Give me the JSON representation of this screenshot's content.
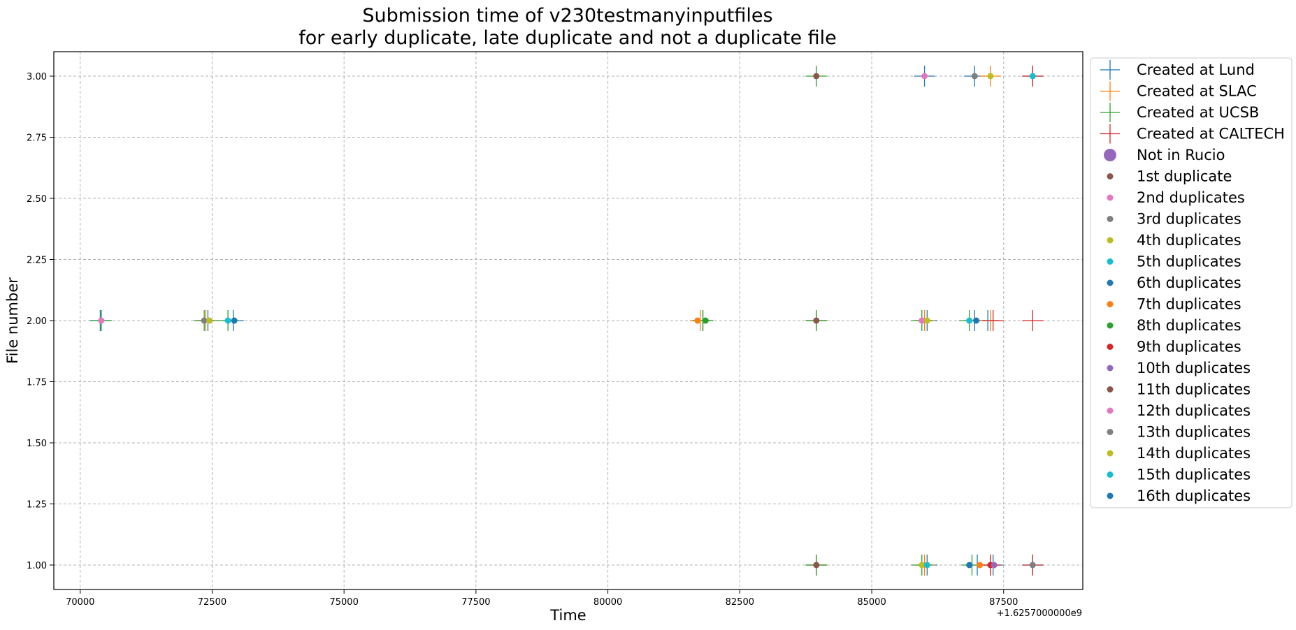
{
  "chart_data": {
    "type": "scatter",
    "title_lines": [
      "Submission time of v230testmanyinputfiles",
      "for early duplicate, late duplicate and not a duplicate file"
    ],
    "xlabel": "Time",
    "ylabel": "File number",
    "x_offset_label": "+1.6257000000e9",
    "xlim": [
      69500,
      89000
    ],
    "ylim": [
      0.9,
      3.1
    ],
    "x_ticks": [
      70000,
      72500,
      75000,
      77500,
      80000,
      82500,
      85000,
      87500
    ],
    "x_tick_labels": [
      "70000",
      "72500",
      "75000",
      "77500",
      "80000",
      "82500",
      "85000",
      "87500"
    ],
    "y_ticks": [
      1.0,
      1.25,
      1.5,
      1.75,
      2.0,
      2.25,
      2.5,
      2.75,
      3.0
    ],
    "y_tick_labels": [
      "1.00",
      "1.25",
      "1.50",
      "1.75",
      "2.00",
      "2.25",
      "2.50",
      "2.75",
      "3.00"
    ],
    "grid": true,
    "legend_position": "outside-right-top",
    "series": [
      {
        "name": "Created at Lund",
        "marker": "plus",
        "color": "#1f77b4",
        "points": [
          [
            70380,
            2.0
          ],
          [
            72420,
            2.0
          ],
          [
            72900,
            2.0
          ],
          [
            81800,
            2.0
          ],
          [
            83950,
            2.0
          ],
          [
            86050,
            2.0
          ],
          [
            86950,
            2.0
          ],
          [
            87200,
            2.0
          ],
          [
            83950,
            1.0
          ],
          [
            86050,
            1.0
          ],
          [
            87000,
            1.0
          ],
          [
            87300,
            1.0
          ],
          [
            88050,
            1.0
          ],
          [
            86000,
            3.0
          ],
          [
            86950,
            3.0
          ],
          [
            88050,
            3.0
          ]
        ]
      },
      {
        "name": "Created at SLAC",
        "marker": "plus",
        "color": "#ff7f0e",
        "points": [
          [
            72380,
            2.0
          ],
          [
            81750,
            2.0
          ],
          [
            83950,
            2.0
          ],
          [
            86000,
            2.0
          ],
          [
            87250,
            2.0
          ],
          [
            83950,
            1.0
          ],
          [
            86000,
            1.0
          ],
          [
            87250,
            1.0
          ],
          [
            87250,
            3.0
          ]
        ]
      },
      {
        "name": "Created at UCSB",
        "marker": "plus",
        "color": "#2ca02c",
        "points": [
          [
            70400,
            2.0
          ],
          [
            72350,
            2.0
          ],
          [
            72800,
            2.0
          ],
          [
            81800,
            2.0
          ],
          [
            83950,
            2.0
          ],
          [
            85950,
            2.0
          ],
          [
            86850,
            2.0
          ],
          [
            83950,
            1.0
          ],
          [
            85950,
            1.0
          ],
          [
            86900,
            1.0
          ],
          [
            83950,
            3.0
          ]
        ]
      },
      {
        "name": "Created at CALTECH",
        "marker": "plus",
        "color": "#d62728",
        "points": [
          [
            87300,
            2.0
          ],
          [
            88050,
            2.0
          ],
          [
            87250,
            1.0
          ],
          [
            88050,
            1.0
          ],
          [
            88050,
            3.0
          ]
        ]
      },
      {
        "name": "Not in Rucio",
        "marker": "bigdot",
        "color": "#9467bd",
        "points": []
      },
      {
        "name": "1st duplicate",
        "marker": "dot",
        "color": "#8c564b",
        "points": [
          [
            83950,
            3.0
          ],
          [
            83950,
            2.0
          ],
          [
            83950,
            1.0
          ]
        ]
      },
      {
        "name": "2nd duplicates",
        "marker": "dot",
        "color": "#e377c2",
        "points": [
          [
            70400,
            2.0
          ],
          [
            86000,
            3.0
          ],
          [
            85950,
            2.0
          ]
        ]
      },
      {
        "name": "3rd duplicates",
        "marker": "dot",
        "color": "#7f7f7f",
        "points": [
          [
            72350,
            2.0
          ],
          [
            86950,
            3.0
          ]
        ]
      },
      {
        "name": "4th duplicates",
        "marker": "dot",
        "color": "#bcbd22",
        "points": [
          [
            72450,
            2.0
          ],
          [
            87250,
            3.0
          ],
          [
            86050,
            2.0
          ],
          [
            85950,
            1.0
          ]
        ]
      },
      {
        "name": "5th duplicates",
        "marker": "dot",
        "color": "#17becf",
        "points": [
          [
            72800,
            2.0
          ],
          [
            88050,
            3.0
          ],
          [
            86850,
            2.0
          ],
          [
            86050,
            1.0
          ]
        ]
      },
      {
        "name": "6th duplicates",
        "marker": "dot",
        "color": "#1f77b4",
        "points": [
          [
            72920,
            2.0
          ],
          [
            86980,
            2.0
          ],
          [
            86850,
            1.0
          ]
        ]
      },
      {
        "name": "7th duplicates",
        "marker": "dot",
        "color": "#ff7f0e",
        "points": [
          [
            81700,
            2.0
          ],
          [
            87050,
            1.0
          ]
        ]
      },
      {
        "name": "8th duplicates",
        "marker": "dot",
        "color": "#2ca02c",
        "points": [
          [
            81850,
            2.0
          ]
        ]
      },
      {
        "name": "9th duplicates",
        "marker": "dot",
        "color": "#d62728",
        "points": [
          [
            87250,
            1.0
          ]
        ]
      },
      {
        "name": "10th duplicates",
        "marker": "dot",
        "color": "#9467bd",
        "points": [
          [
            87320,
            1.0
          ]
        ]
      },
      {
        "name": "11th duplicates",
        "marker": "dot",
        "color": "#8c564b",
        "points": []
      },
      {
        "name": "12th duplicates",
        "marker": "dot",
        "color": "#e377c2",
        "points": []
      },
      {
        "name": "13th duplicates",
        "marker": "dot",
        "color": "#7f7f7f",
        "points": [
          [
            88050,
            1.0
          ]
        ]
      },
      {
        "name": "14th duplicates",
        "marker": "dot",
        "color": "#bcbd22",
        "points": []
      },
      {
        "name": "15th duplicates",
        "marker": "dot",
        "color": "#17becf",
        "points": []
      },
      {
        "name": "16th duplicates",
        "marker": "dot",
        "color": "#1f77b4",
        "points": []
      }
    ]
  }
}
